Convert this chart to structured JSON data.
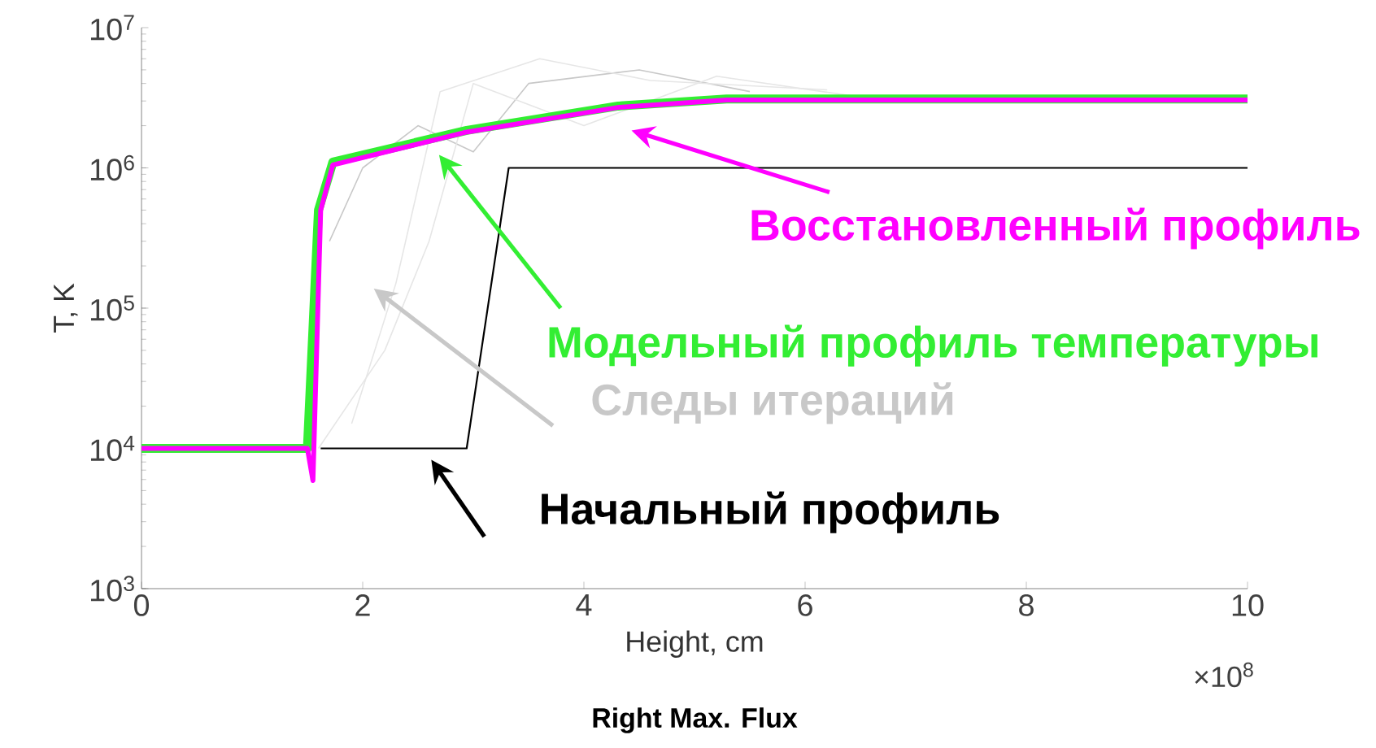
{
  "chart_data": {
    "type": "line",
    "title": "Right Max. Flux",
    "xlabel": "Height, cm",
    "ylabel": "T, K",
    "log": "y",
    "marker": "none",
    "grid": false,
    "annotations": [
      "×10$^{8}$"
    ],
    "xlim": [
      0,
      10
    ],
    "xticks": [
      0,
      2,
      4,
      6,
      8,
      10
    ],
    "ylim": [
      1000,
      10000000
    ],
    "yticks": [
      {
        "value": 1000,
        "label": "10$^{3}$"
      },
      {
        "value": 10000,
        "label": "10$^{4}$"
      },
      {
        "value": 100000,
        "label": "10$^{5}$"
      },
      {
        "value": 1000000,
        "label": "10$^{6}$"
      },
      {
        "value": 10000000,
        "label": "10$^{7}$"
      }
    ],
    "series": [
      {
        "name": "Следы итераций",
        "color": "#c8c8c8",
        "x": [
          1.7,
          2.0,
          2.5,
          3.0,
          3.5,
          4.5,
          5.5
        ],
        "values": [
          300000,
          1000000,
          2000000,
          1300000,
          4000000,
          5000000,
          3500000
        ]
      },
      {
        "color": "#e6e6e6",
        "x": [
          1.6,
          2.2,
          2.6,
          3.0,
          4.0,
          5.2,
          6.5,
          10
        ],
        "values": [
          10000,
          50000,
          300000,
          4000000,
          2000000,
          4500000,
          3200000,
          3000000
        ]
      },
      {
        "color": "#e6e6e6",
        "x": [
          1.9,
          2.3,
          2.7,
          3.6,
          4.6,
          6.2
        ],
        "values": [
          15000,
          150000,
          3500000,
          6000000,
          4200000,
          3600000
        ]
      },
      {
        "name": "Начальный профиль",
        "color": "#000000",
        "x": [
          1.62,
          2.94,
          3.32,
          10
        ],
        "values": [
          10000,
          10000,
          1000000,
          1000000
        ]
      },
      {
        "name": "Модельный профиль температуры",
        "color": "#33ee33",
        "x": [
          0,
          1.5,
          1.6,
          1.73,
          2.94,
          4.31,
          5.29,
          10
        ],
        "values": [
          10000,
          10000,
          500000,
          1100000,
          1850000,
          2760000,
          3100000,
          3100000
        ]
      },
      {
        "name": "Восстановленный профиль",
        "color": "#ff00ff",
        "x": [
          0,
          1.5,
          1.55,
          1.62,
          1.73,
          2.94,
          4.31,
          5.29,
          10
        ],
        "values": [
          10000,
          10000,
          5900,
          500000,
          1050000,
          1800000,
          2700000,
          3050000,
          3050000
        ]
      }
    ]
  }
}
